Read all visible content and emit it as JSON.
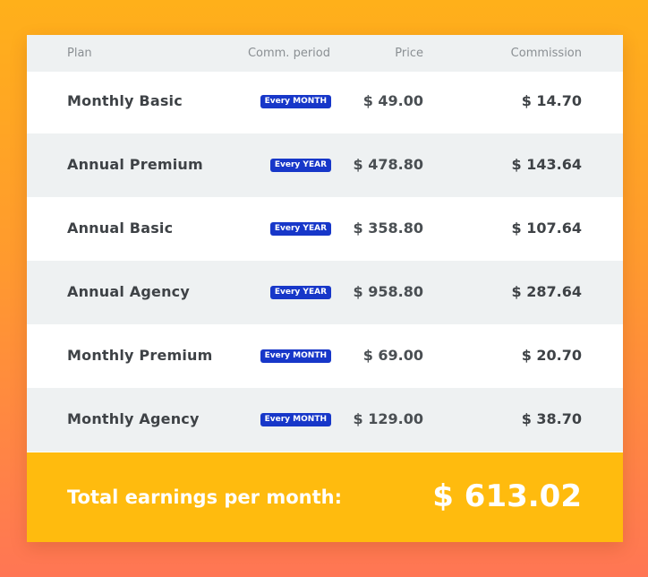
{
  "table": {
    "headers": {
      "plan": "Plan",
      "period": "Comm. period",
      "price": "Price",
      "commission": "Commission"
    },
    "rows": [
      {
        "plan": "Monthly Basic",
        "period": "Every MONTH",
        "price": "$ 49.00",
        "commission": "$ 14.70"
      },
      {
        "plan": "Annual Premium",
        "period": "Every YEAR",
        "price": "$ 478.80",
        "commission": "$ 143.64"
      },
      {
        "plan": "Annual Basic",
        "period": "Every YEAR",
        "price": "$ 358.80",
        "commission": "$ 107.64"
      },
      {
        "plan": "Annual Agency",
        "period": "Every YEAR",
        "price": "$ 958.80",
        "commission": "$ 287.64"
      },
      {
        "plan": "Monthly Premium",
        "period": "Every MONTH",
        "price": "$ 69.00",
        "commission": "$ 20.70"
      },
      {
        "plan": "Monthly Agency",
        "period": "Every MONTH",
        "price": "$ 129.00",
        "commission": "$ 38.70"
      }
    ]
  },
  "footer": {
    "label": "Total earnings per month:",
    "value": "$ 613.02"
  },
  "colors": {
    "background_top": "#ffb01a",
    "background_bottom": "#ff7654",
    "badge": "#1737c9",
    "footer": "#ffbb0e",
    "row_alt": "#eef1f2"
  }
}
